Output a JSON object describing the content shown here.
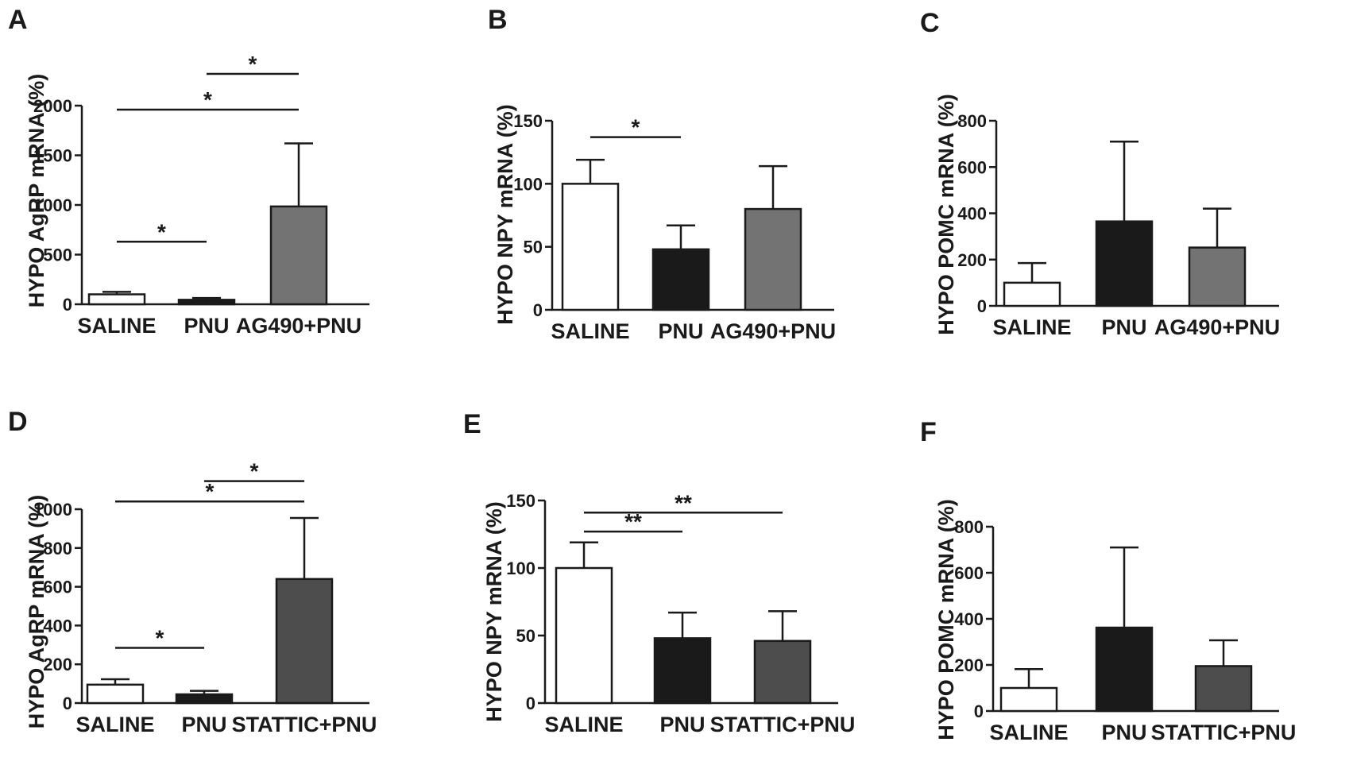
{
  "chart_data": [
    {
      "panel": "A",
      "type": "bar",
      "ylabel": "HYPO AgRP mRNA (%)",
      "categories": [
        "SALINE",
        "PNU",
        "AG490+PNU"
      ],
      "values": [
        100,
        45,
        985
      ],
      "errors": [
        25,
        18,
        635
      ],
      "bar_colors": [
        "#ffffff",
        "#1a1a1a",
        "#737373"
      ],
      "ylim": [
        0,
        2000
      ],
      "yticks": [
        0,
        500,
        1000,
        1500,
        2000
      ],
      "significance": [
        {
          "from": 0,
          "to": 1,
          "label": "*",
          "y": 630
        },
        {
          "from": 0,
          "to": 2,
          "label": "*",
          "y": 1960
        },
        {
          "from": 1,
          "to": 2,
          "label": "*",
          "y": 2320
        }
      ]
    },
    {
      "panel": "B",
      "type": "bar",
      "ylabel": "HYPO NPY mRNA (%)",
      "categories": [
        "SALINE",
        "PNU",
        "AG490+PNU"
      ],
      "values": [
        100,
        48,
        80
      ],
      "errors": [
        19,
        19,
        34
      ],
      "bar_colors": [
        "#ffffff",
        "#1a1a1a",
        "#737373"
      ],
      "ylim": [
        0,
        150
      ],
      "yticks": [
        0,
        50,
        100,
        150
      ],
      "significance": [
        {
          "from": 0,
          "to": 1,
          "label": "*",
          "y": 137
        }
      ]
    },
    {
      "panel": "C",
      "type": "bar",
      "ylabel": "HYPO POMC mRNA (%)",
      "categories": [
        "SALINE",
        "PNU",
        "AG490+PNU"
      ],
      "values": [
        100,
        365,
        252
      ],
      "errors": [
        85,
        345,
        168
      ],
      "bar_colors": [
        "#ffffff",
        "#1a1a1a",
        "#737373"
      ],
      "ylim": [
        0,
        800
      ],
      "yticks": [
        0,
        200,
        400,
        600,
        800
      ],
      "significance": []
    },
    {
      "panel": "D",
      "type": "bar",
      "ylabel": "HYPO AgRP mRNA (%)",
      "categories": [
        "SALINE",
        "PNU",
        "STATTIC+PNU"
      ],
      "values": [
        95,
        45,
        640
      ],
      "errors": [
        28,
        18,
        315
      ],
      "bar_colors": [
        "#ffffff",
        "#1a1a1a",
        "#4d4d4d"
      ],
      "ylim": [
        0,
        1000
      ],
      "yticks": [
        0,
        200,
        400,
        600,
        800,
        1000
      ],
      "significance": [
        {
          "from": 0,
          "to": 1,
          "label": "*",
          "y": 285
        },
        {
          "from": 0,
          "to": 2,
          "label": "*",
          "y": 1040
        },
        {
          "from": 1,
          "to": 2,
          "label": "*",
          "y": 1145
        }
      ]
    },
    {
      "panel": "E",
      "type": "bar",
      "ylabel": "HYPO NPY mRNA (%)",
      "categories": [
        "SALINE",
        "PNU",
        "STATTIC+PNU"
      ],
      "values": [
        100,
        48,
        46
      ],
      "errors": [
        19,
        19,
        22
      ],
      "bar_colors": [
        "#ffffff",
        "#1a1a1a",
        "#4d4d4d"
      ],
      "ylim": [
        0,
        150
      ],
      "yticks": [
        0,
        50,
        100,
        150
      ],
      "significance": [
        {
          "from": 0,
          "to": 1,
          "label": "**",
          "y": 127
        },
        {
          "from": 0,
          "to": 2,
          "label": "**",
          "y": 141
        }
      ]
    },
    {
      "panel": "F",
      "type": "bar",
      "ylabel": "HYPO POMC mRNA (%)",
      "categories": [
        "SALINE",
        "PNU",
        "STATTIC+PNU"
      ],
      "values": [
        100,
        362,
        195
      ],
      "errors": [
        82,
        348,
        112
      ],
      "bar_colors": [
        "#ffffff",
        "#1a1a1a",
        "#4d4d4d"
      ],
      "ylim": [
        0,
        800
      ],
      "yticks": [
        0,
        200,
        400,
        600,
        800
      ],
      "significance": []
    }
  ]
}
